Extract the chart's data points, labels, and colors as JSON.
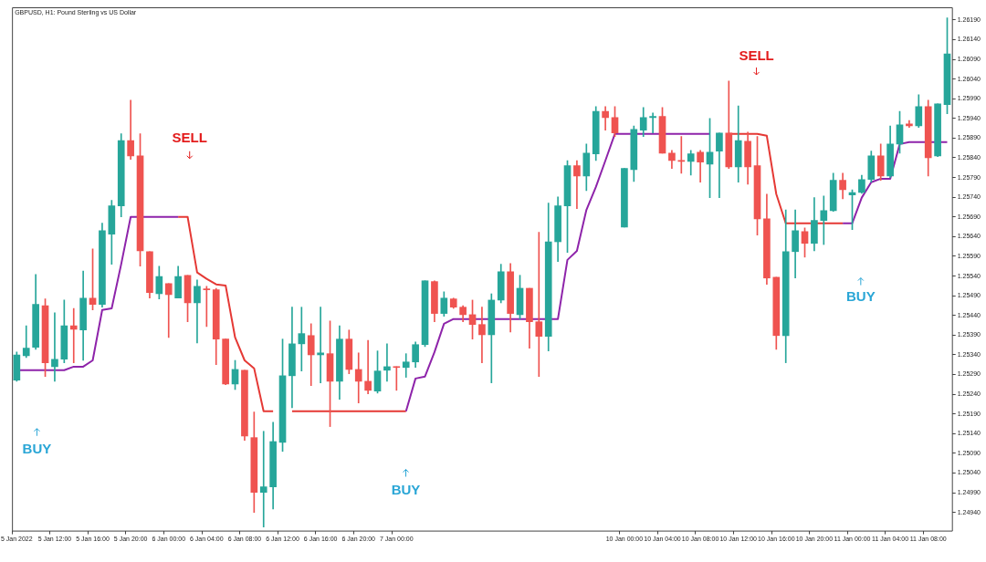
{
  "chart_data": {
    "type": "candlestick",
    "title": "GBPUSD, H1: Pound Sterling vs US Dollar",
    "marker": "none",
    "line_style": "solid",
    "categories": [
      "5 Jan 2022",
      null,
      null,
      null,
      "5 Jan 12:00",
      null,
      null,
      null,
      "5 Jan 16:00",
      null,
      null,
      null,
      "5 Jan 20:00",
      null,
      null,
      null,
      "6 Jan 00:00",
      null,
      null,
      null,
      "6 Jan 04:00",
      null,
      null,
      null,
      "6 Jan 08:00",
      null,
      null,
      null,
      "6 Jan 12:00",
      null,
      null,
      null,
      "6 Jan 16:00",
      null,
      null,
      null,
      "6 Jan 20:00",
      null,
      null,
      null,
      "7 Jan 00:00",
      null,
      null,
      null,
      null,
      null,
      null,
      null,
      null,
      null,
      null,
      null,
      null,
      null,
      null,
      null,
      null,
      null,
      null,
      null,
      null,
      null,
      null,
      null,
      "10 Jan 00:00",
      null,
      null,
      null,
      "10 Jan 04:00",
      null,
      null,
      null,
      "10 Jan 08:00",
      null,
      null,
      null,
      "10 Jan 12:00",
      null,
      null,
      null,
      "10 Jan 16:00",
      null,
      null,
      null,
      "10 Jan 20:00",
      null,
      null,
      null,
      "11 Jan 00:00",
      null,
      null,
      null,
      "11 Jan 04:00",
      null,
      null,
      null,
      "11 Jan 08:00",
      null,
      null
    ],
    "ohlc": [
      [
        1.25276,
        1.25347,
        1.25273,
        1.2534
      ],
      [
        1.25338,
        1.25414,
        1.25333,
        1.25357
      ],
      [
        1.25359,
        1.25544,
        1.25354,
        1.25468
      ],
      [
        1.25465,
        1.25482,
        1.25285,
        1.2532
      ],
      [
        1.2531,
        1.25447,
        1.25273,
        1.25329
      ],
      [
        1.25329,
        1.25479,
        1.2532,
        1.25414
      ],
      [
        1.25414,
        1.25458,
        1.2532,
        1.25405
      ],
      [
        1.25403,
        1.25553,
        1.25326,
        1.25484
      ],
      [
        1.25484,
        1.25609,
        1.25454,
        1.25468
      ],
      [
        1.25468,
        1.25674,
        1.25461,
        1.25655
      ],
      [
        1.25646,
        1.25732,
        1.2557,
        1.25718
      ],
      [
        1.25718,
        1.25901,
        1.2569,
        1.25884
      ],
      [
        1.25884,
        1.25986,
        1.25836,
        1.25845
      ],
      [
        1.25845,
        1.25901,
        1.25565,
        1.25604
      ],
      [
        1.25602,
        1.25602,
        1.25484,
        1.25498
      ],
      [
        1.25495,
        1.25565,
        1.25482,
        1.25539
      ],
      [
        1.25521,
        1.25521,
        1.25384,
        1.25493
      ],
      [
        1.25484,
        1.25565,
        1.25484,
        1.25539
      ],
      [
        1.25542,
        1.25542,
        1.25424,
        1.25472
      ],
      [
        1.25472,
        1.2553,
        1.2537,
        1.25514
      ],
      [
        1.25507,
        1.25514,
        1.25412,
        1.25505
      ],
      [
        1.25505,
        1.25509,
        1.25315,
        1.2538
      ],
      [
        1.2538,
        1.2538,
        1.25264,
        1.25266
      ],
      [
        1.25266,
        1.25326,
        1.25252,
        1.25303
      ],
      [
        1.25301,
        1.25301,
        1.25123,
        1.25134
      ],
      [
        1.2513,
        1.25195,
        1.2494,
        1.24991
      ],
      [
        1.24991,
        1.25146,
        1.24903,
        1.25005
      ],
      [
        1.25005,
        1.25169,
        1.24949,
        1.2512
      ],
      [
        1.25118,
        1.2538,
        1.25095,
        1.25287
      ],
      [
        1.25287,
        1.25461,
        1.25206,
        1.25368
      ],
      [
        1.25368,
        1.25461,
        1.25299,
        1.25394
      ],
      [
        1.25389,
        1.25419,
        1.25262,
        1.2534
      ],
      [
        1.2534,
        1.25461,
        1.25269,
        1.25345
      ],
      [
        1.25343,
        1.25426,
        1.25158,
        1.25273
      ],
      [
        1.25273,
        1.25414,
        1.25227,
        1.2538
      ],
      [
        1.2538,
        1.25403,
        1.25292,
        1.25303
      ],
      [
        1.25303,
        1.25345,
        1.25218,
        1.25273
      ],
      [
        1.25273,
        1.25377,
        1.25241,
        1.2525
      ],
      [
        1.25248,
        1.2535,
        1.25243,
        1.25299
      ],
      [
        1.25301,
        1.25368,
        1.25273,
        1.2531
      ],
      [
        1.2531,
        1.2531,
        1.2525,
        1.25308
      ],
      [
        1.25308,
        1.25343,
        1.25283,
        1.25322
      ],
      [
        1.25322,
        1.25373,
        1.25308,
        1.25366
      ],
      [
        1.25366,
        1.25528,
        1.25361,
        1.25528
      ],
      [
        1.25526,
        1.25528,
        1.25424,
        1.25445
      ],
      [
        1.25445,
        1.255,
        1.25438,
        1.25484
      ],
      [
        1.25482,
        1.25484,
        1.25458,
        1.25461
      ],
      [
        1.25461,
        1.25465,
        1.25424,
        1.25442
      ],
      [
        1.25442,
        1.25479,
        1.2538,
        1.25417
      ],
      [
        1.25417,
        1.25461,
        1.2532,
        1.25391
      ],
      [
        1.25391,
        1.25495,
        1.25269,
        1.25479
      ],
      [
        1.25479,
        1.2557,
        1.25472,
        1.25551
      ],
      [
        1.25551,
        1.25572,
        1.25398,
        1.25445
      ],
      [
        1.25442,
        1.25542,
        1.25431,
        1.25509
      ],
      [
        1.25509,
        1.25509,
        1.25357,
        1.25424
      ],
      [
        1.25424,
        1.25651,
        1.25285,
        1.25387
      ],
      [
        1.25387,
        1.25725,
        1.2535,
        1.25627
      ],
      [
        1.25627,
        1.25741,
        1.25577,
        1.25718
      ],
      [
        1.25718,
        1.25833,
        1.256,
        1.2582
      ],
      [
        1.2582,
        1.25833,
        1.25711,
        1.25794
      ],
      [
        1.25794,
        1.25875,
        1.25757,
        1.25852
      ],
      [
        1.2585,
        1.2597,
        1.25833,
        1.25958
      ],
      [
        1.25958,
        1.2597,
        1.2591,
        1.25942
      ],
      [
        1.25942,
        1.2597,
        1.25894,
        1.25903
      ],
      [
        1.25664,
        1.25813,
        1.25664,
        1.25813
      ],
      [
        1.2581,
        1.25921,
        1.2578,
        1.25912
      ],
      [
        1.2591,
        1.25968,
        1.25894,
        1.25942
      ],
      [
        1.25942,
        1.25954,
        1.25903,
        1.25945
      ],
      [
        1.25945,
        1.25968,
        1.25852,
        1.25852
      ],
      [
        1.25852,
        1.25859,
        1.25813,
        1.25833
      ],
      [
        1.25833,
        1.25894,
        1.25801,
        1.25831
      ],
      [
        1.25831,
        1.25859,
        1.25796,
        1.2585
      ],
      [
        1.25854,
        1.25859,
        1.25778,
        1.25829
      ],
      [
        1.25824,
        1.2594,
        1.25739,
        1.25854
      ],
      [
        1.25857,
        1.25903,
        1.25739,
        1.25903
      ],
      [
        1.25903,
        1.26035,
        1.25813,
        1.25817
      ],
      [
        1.25817,
        1.25972,
        1.25778,
        1.25884
      ],
      [
        1.25882,
        1.25905,
        1.25773,
        1.25817
      ],
      [
        1.2582,
        1.25894,
        1.25644,
        1.25685
      ],
      [
        1.25685,
        1.25748,
        1.25519,
        1.25535
      ],
      [
        1.25537,
        1.25537,
        1.25354,
        1.25389
      ],
      [
        1.25389,
        1.25708,
        1.2532,
        1.25602
      ],
      [
        1.25602,
        1.25708,
        1.25535,
        1.25655
      ],
      [
        1.25653,
        1.25662,
        1.25588,
        1.25623
      ],
      [
        1.25623,
        1.25739,
        1.25604,
        1.25681
      ],
      [
        1.25681,
        1.25743,
        1.2562,
        1.25706
      ],
      [
        1.25706,
        1.25801,
        1.25704,
        1.25783
      ],
      [
        1.25783,
        1.25801,
        1.25736,
        1.25759
      ],
      [
        1.25746,
        1.25759,
        1.25658,
        1.25752
      ],
      [
        1.25752,
        1.25796,
        1.2575,
        1.25785
      ],
      [
        1.25785,
        1.25857,
        1.25778,
        1.25845
      ],
      [
        1.25845,
        1.25875,
        1.25783,
        1.25794
      ],
      [
        1.25794,
        1.25921,
        1.2579,
        1.25875
      ],
      [
        1.25875,
        1.25958,
        1.25852,
        1.25924
      ],
      [
        1.25926,
        1.25935,
        1.25917,
        1.25921
      ],
      [
        1.25921,
        1.26,
        1.25917,
        1.2597
      ],
      [
        1.2597,
        1.25986,
        1.25794,
        1.2584
      ],
      [
        1.25845,
        1.25977,
        1.25843,
        1.25977
      ],
      [
        1.25975,
        1.26195,
        1.25952,
        1.26104
      ]
    ],
    "colors": [
      "#26a69a",
      "#26a69a",
      "#26a69a",
      "#ef5350",
      "#26a69a",
      "#26a69a",
      "#ef5350",
      "#26a69a",
      "#ef5350",
      "#26a69a",
      "#26a69a",
      "#26a69a",
      "#ef5350",
      "#ef5350",
      "#ef5350",
      "#26a69a",
      "#ef5350",
      "#26a69a",
      "#ef5350",
      "#26a69a",
      "#ef5350",
      "#ef5350",
      "#ef5350",
      "#26a69a",
      "#ef5350",
      "#ef5350",
      "#26a69a",
      "#26a69a",
      "#26a69a",
      "#26a69a",
      "#26a69a",
      "#ef5350",
      "#26a69a",
      "#ef5350",
      "#26a69a",
      "#ef5350",
      "#ef5350",
      "#ef5350",
      "#26a69a",
      "#26a69a",
      "#ef5350",
      "#26a69a",
      "#26a69a",
      "#26a69a",
      "#ef5350",
      "#26a69a",
      "#ef5350",
      "#ef5350",
      "#ef5350",
      "#ef5350",
      "#26a69a",
      "#26a69a",
      "#ef5350",
      "#26a69a",
      "#ef5350",
      "#ef5350",
      "#26a69a",
      "#26a69a",
      "#26a69a",
      "#ef5350",
      "#26a69a",
      "#26a69a",
      "#ef5350",
      "#ef5350",
      "#26a69a",
      "#26a69a",
      "#26a69a",
      "#26a69a",
      "#ef5350",
      "#ef5350",
      "#ef5350",
      "#26a69a",
      "#ef5350",
      "#26a69a",
      "#26a69a",
      "#ef5350",
      "#26a69a",
      "#ef5350",
      "#ef5350",
      "#ef5350",
      "#ef5350",
      "#26a69a",
      "#26a69a",
      "#ef5350",
      "#26a69a",
      "#26a69a",
      "#26a69a",
      "#ef5350",
      "#26a69a",
      "#26a69a",
      "#26a69a",
      "#ef5350",
      "#26a69a",
      "#26a69a",
      "#ef5350",
      "#26a69a",
      "#ef5350",
      "#26a69a",
      "#26a69a"
    ],
    "series": [
      {
        "type": "line",
        "color": "#8e24aa",
        "values": [
          1.25301,
          1.25301,
          1.25301,
          1.25301,
          1.25301,
          1.25301,
          1.2531,
          1.2531,
          1.25326,
          1.25454,
          1.25458,
          1.2557,
          1.2569,
          1.2569,
          1.2569,
          1.2569,
          1.2569,
          1.2569,
          null,
          null,
          null,
          null,
          null,
          null,
          null,
          null,
          null,
          null,
          null,
          null,
          null,
          null,
          null,
          null,
          null,
          null,
          null,
          null,
          null,
          null,
          null,
          1.25197,
          1.2528,
          1.25285,
          1.25347,
          1.25419,
          1.25431,
          1.25431,
          1.25431,
          1.25431,
          1.25431,
          1.25431,
          1.25431,
          1.25431,
          1.25431,
          1.25431,
          1.25431,
          1.25431,
          1.25581,
          1.25604,
          1.25708,
          1.25766,
          1.25833,
          1.25901,
          1.25901,
          1.25901,
          1.25901,
          1.25901,
          1.25901,
          1.25901,
          1.25901,
          1.25901,
          1.25901,
          1.25901,
          null,
          null,
          null,
          null,
          null,
          null,
          null,
          null,
          null,
          null,
          null,
          null,
          null,
          1.25674,
          1.25674,
          1.25739,
          1.25778,
          1.25787,
          1.25787,
          1.25875,
          1.2588,
          1.2588,
          1.2588,
          1.2588,
          1.2588
        ]
      },
      {
        "type": "line",
        "color": "#e53935",
        "values": [
          null,
          null,
          null,
          null,
          null,
          null,
          null,
          null,
          null,
          null,
          null,
          null,
          null,
          null,
          null,
          null,
          null,
          1.2569,
          1.2569,
          1.25549,
          1.25533,
          1.25519,
          1.25516,
          1.25384,
          1.25326,
          1.25306,
          1.25197,
          1.25197,
          null,
          1.25197,
          1.25197,
          1.25197,
          1.25197,
          1.25197,
          1.25197,
          1.25197,
          1.25197,
          1.25197,
          1.25197,
          1.25197,
          1.25197,
          1.25197,
          null,
          null,
          null,
          null,
          null,
          null,
          null,
          null,
          null,
          null,
          null,
          null,
          null,
          null,
          null,
          null,
          null,
          null,
          null,
          null,
          null,
          null,
          null,
          null,
          null,
          null,
          null,
          null,
          null,
          null,
          null,
          null,
          null,
          1.25901,
          1.25901,
          1.25901,
          1.25901,
          1.25896,
          1.25748,
          1.25674,
          1.25674,
          1.25674,
          1.25674,
          1.25674,
          1.25674,
          1.25674,
          null,
          null,
          null,
          null,
          null,
          null,
          null,
          null,
          null,
          null,
          null
        ]
      }
    ],
    "ylim": [
      1.24894,
      1.26222
    ],
    "yticks": [
      {
        "value": 1.2494,
        "label": "1.24940"
      },
      {
        "value": 1.2499,
        "label": "1.24990"
      },
      {
        "value": 1.2504,
        "label": "1.25040"
      },
      {
        "value": 1.2509,
        "label": "1.25090"
      },
      {
        "value": 1.2514,
        "label": "1.25140"
      },
      {
        "value": 1.2519,
        "label": "1.25190"
      },
      {
        "value": 1.2524,
        "label": "1.25240"
      },
      {
        "value": 1.2529,
        "label": "1.25290"
      },
      {
        "value": 1.2534,
        "label": "1.25340"
      },
      {
        "value": 1.2539,
        "label": "1.25390"
      },
      {
        "value": 1.2544,
        "label": "1.25440"
      },
      {
        "value": 1.2549,
        "label": "1.25490"
      },
      {
        "value": 1.2554,
        "label": "1.25540"
      },
      {
        "value": 1.2559,
        "label": "1.25590"
      },
      {
        "value": 1.2564,
        "label": "1.25640"
      },
      {
        "value": 1.2569,
        "label": "1.25690"
      },
      {
        "value": 1.2574,
        "label": "1.25740"
      },
      {
        "value": 1.2579,
        "label": "1.25790"
      },
      {
        "value": 1.2584,
        "label": "1.25840"
      },
      {
        "value": 1.2589,
        "label": "1.25890"
      },
      {
        "value": 1.2594,
        "label": "1.25940"
      },
      {
        "value": 1.2599,
        "label": "1.25990"
      },
      {
        "value": 1.2604,
        "label": "1.26040"
      },
      {
        "value": 1.2609,
        "label": "1.26090"
      },
      {
        "value": 1.2614,
        "label": "1.26140"
      },
      {
        "value": 1.2619,
        "label": "1.26190"
      }
    ],
    "annotations": [
      "BUY",
      "SELL",
      "BUY",
      "SELL",
      "BUY"
    ],
    "legend": false
  }
}
